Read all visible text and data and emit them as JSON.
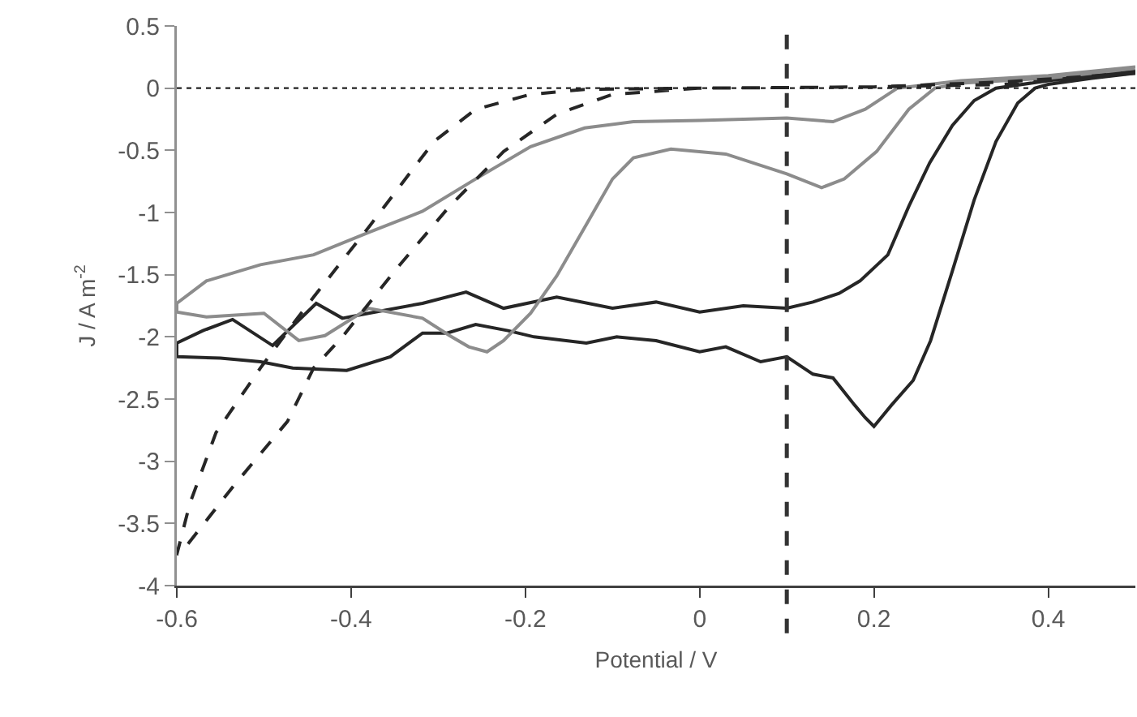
{
  "chart_data": {
    "type": "line",
    "xlabel": "Potential / V",
    "ylabel": "J / A m$^{-2}$",
    "xlim": [
      -0.6,
      0.5
    ],
    "xticks": [
      -0.6,
      -0.4,
      -0.2,
      0,
      0.2,
      0.4
    ],
    "ylim": [
      -4,
      0.5
    ],
    "yticks": [
      -4,
      -3.5,
      -3,
      -2.5,
      -2,
      -1.5,
      -1,
      -0.5,
      0,
      0.5
    ],
    "grid": false,
    "marker": "none",
    "ref_lines": [
      {
        "axis": "y",
        "value": 0,
        "color": "#222222",
        "line_style": "dotted"
      },
      {
        "axis": "x",
        "value": 0.1,
        "color": "#333333",
        "line_style": "dashed"
      }
    ],
    "series": [
      {
        "color": "#262626",
        "line_style": "solid",
        "x": [
          0.5,
          0.45,
          0.4,
          0.385,
          0.365,
          0.34,
          0.315,
          0.29,
          0.265,
          0.245,
          0.22,
          0.2,
          0.19,
          0.178,
          0.153,
          0.13,
          0.1,
          0.07,
          0.03,
          0,
          -0.05,
          -0.095,
          -0.13,
          -0.19,
          -0.22,
          -0.257,
          -0.29,
          -0.318,
          -0.355,
          -0.405,
          -0.467,
          -0.504,
          -0.55,
          -0.6,
          -0.6,
          -0.57,
          -0.536,
          -0.49,
          -0.44,
          -0.41,
          -0.38,
          -0.318,
          -0.268,
          -0.225,
          -0.164,
          -0.1,
          -0.05,
          0,
          0.05,
          0.1,
          0.13,
          0.16,
          0.184,
          0.216,
          0.24,
          0.264,
          0.29,
          0.315,
          0.34,
          0.4,
          0.5
        ],
        "values": [
          0.12,
          0.08,
          0.03,
          0,
          -0.12,
          -0.43,
          -0.9,
          -1.47,
          -2.03,
          -2.35,
          -2.55,
          -2.72,
          -2.65,
          -2.55,
          -2.33,
          -2.3,
          -2.16,
          -2.2,
          -2.08,
          -2.12,
          -2.03,
          -2,
          -2.05,
          -2,
          -1.95,
          -1.9,
          -1.97,
          -1.97,
          -2.16,
          -2.27,
          -2.25,
          -2.2,
          -2.17,
          -2.16,
          -2.05,
          -1.95,
          -1.86,
          -2.07,
          -1.73,
          -1.85,
          -1.81,
          -1.73,
          -1.64,
          -1.77,
          -1.68,
          -1.77,
          -1.72,
          -1.8,
          -1.75,
          -1.77,
          -1.72,
          -1.65,
          -1.55,
          -1.34,
          -0.95,
          -0.6,
          -0.3,
          -0.1,
          0,
          0.06,
          0.14
        ]
      },
      {
        "color": "#8c8c8c",
        "line_style": "solid",
        "x": [
          0.5,
          0.4,
          0.3,
          0.27,
          0.24,
          0.203,
          0.166,
          0.14,
          0.1,
          0.03,
          -0.033,
          -0.076,
          -0.1,
          -0.132,
          -0.164,
          -0.194,
          -0.225,
          -0.244,
          -0.265,
          -0.287,
          -0.318,
          -0.38,
          -0.43,
          -0.46,
          -0.5,
          -0.566,
          -0.6,
          -0.6,
          -0.566,
          -0.504,
          -0.443,
          -0.38,
          -0.318,
          -0.257,
          -0.194,
          -0.132,
          -0.076,
          0,
          0.1,
          0.153,
          0.19,
          0.227,
          0.3,
          0.4,
          0.5
        ],
        "values": [
          0.16,
          0.08,
          0.04,
          0,
          -0.17,
          -0.51,
          -0.73,
          -0.8,
          -0.69,
          -0.53,
          -0.49,
          -0.56,
          -0.73,
          -1.12,
          -1.51,
          -1.81,
          -2.03,
          -2.12,
          -2.08,
          -1.99,
          -1.85,
          -1.77,
          -1.99,
          -2.03,
          -1.81,
          -1.84,
          -1.8,
          -1.73,
          -1.55,
          -1.42,
          -1.34,
          -1.16,
          -0.99,
          -0.73,
          -0.47,
          -0.32,
          -0.27,
          -0.26,
          -0.24,
          -0.27,
          -0.17,
          0,
          0.06,
          0.1,
          0.17
        ]
      },
      {
        "color": "#262626",
        "line_style": "dashed",
        "x": [
          0.5,
          0.35,
          0.2,
          0,
          -0.1,
          -0.164,
          -0.225,
          -0.287,
          -0.35,
          -0.41,
          -0.443,
          -0.473,
          -0.535,
          -0.59,
          -0.6,
          -0.585,
          -0.555,
          -0.504,
          -0.467,
          -0.443,
          -0.38,
          -0.342,
          -0.305,
          -0.257,
          -0.194,
          -0.132,
          0,
          0.2,
          0.35,
          0.5
        ],
        "values": [
          0.13,
          0.03,
          0.01,
          0,
          -0.05,
          -0.21,
          -0.51,
          -0.95,
          -1.47,
          -2,
          -2.25,
          -2.68,
          -3.2,
          -3.69,
          -3.75,
          -3.34,
          -2.77,
          -2.25,
          -1.9,
          -1.68,
          -1.12,
          -0.77,
          -0.43,
          -0.17,
          -0.05,
          -0.01,
          0,
          0.01,
          0.05,
          0.12
        ]
      }
    ]
  }
}
